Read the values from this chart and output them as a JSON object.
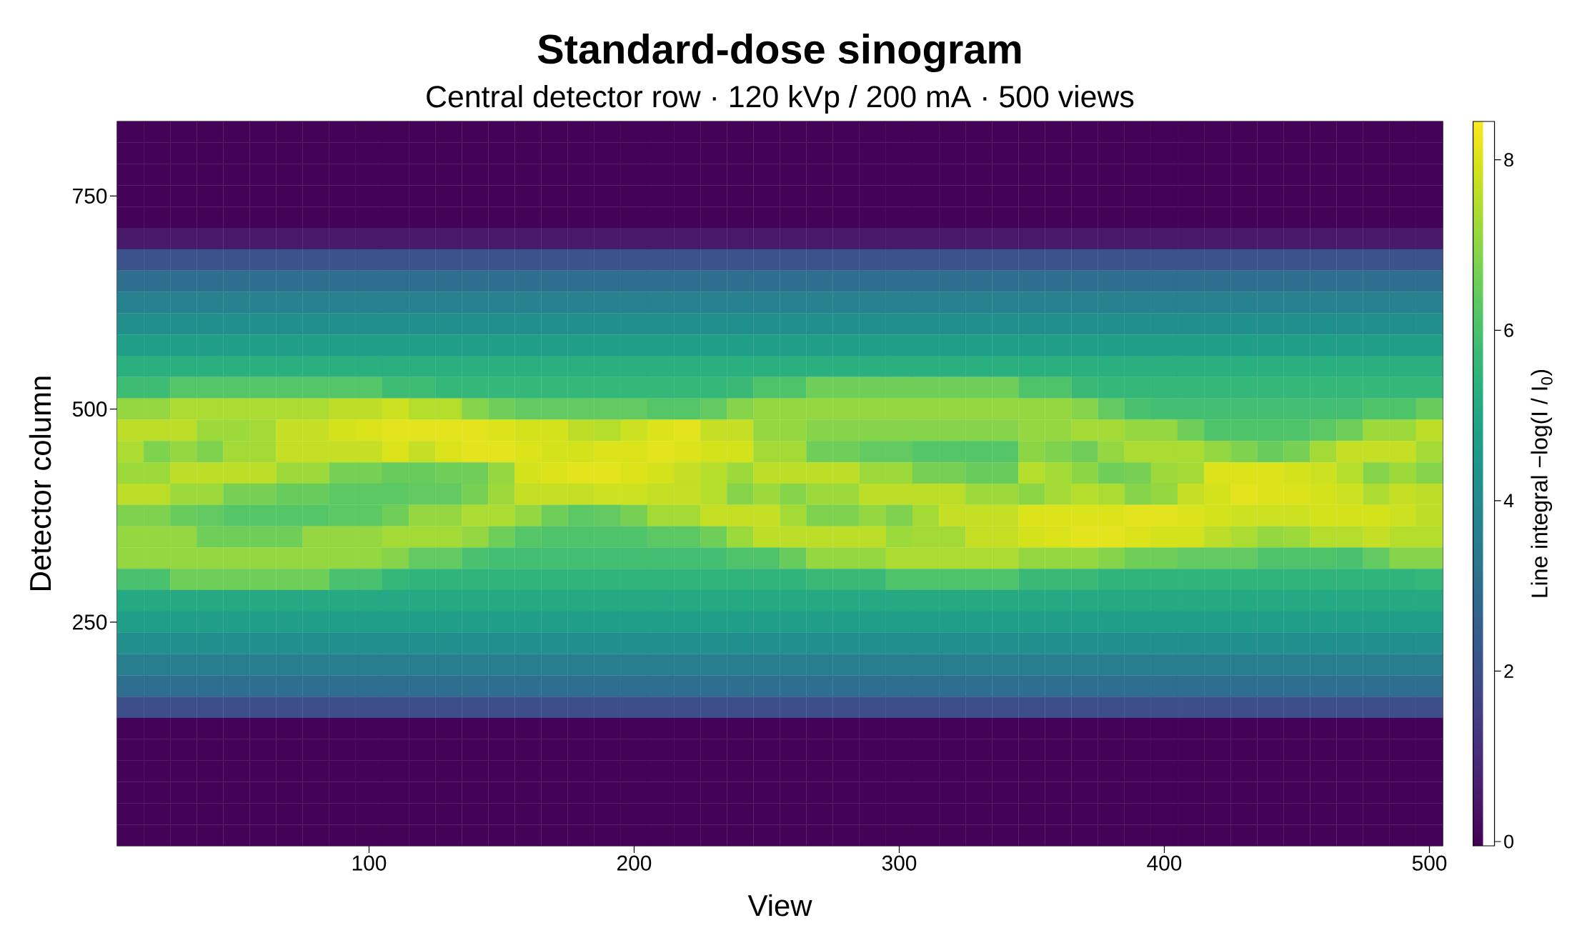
{
  "chart_data": {
    "type": "heatmap",
    "title": "Standard-dose sinogram",
    "subtitle": "Central detector row · 120 kVp / 200 mA · 500 views",
    "xlabel": "View",
    "ylabel": "Detector column",
    "clabel": "Line integral  −log(I / I$_{0}$)",
    "categories": [
      null,
      null,
      null,
      null,
      null,
      null,
      null,
      null,
      null,
      "100",
      null,
      null,
      null,
      null,
      null,
      null,
      null,
      null,
      null,
      "200",
      null,
      null,
      null,
      null,
      null,
      null,
      null,
      null,
      null,
      "300",
      null,
      null,
      null,
      null,
      null,
      null,
      null,
      null,
      null,
      "400",
      null,
      null,
      null,
      null,
      null,
      null,
      null,
      null,
      null,
      "500"
    ],
    "y_categories": [
      null,
      null,
      null,
      "750",
      null,
      null,
      null,
      null,
      null,
      null,
      null,
      null,
      null,
      "500",
      null,
      null,
      null,
      null,
      null,
      null,
      null,
      null,
      null,
      "250",
      null,
      null,
      null,
      null,
      null,
      null,
      null,
      null,
      null,
      null
    ],
    "clim": [
      -0.05,
      8.45
    ],
    "cticks": [
      0,
      2,
      4,
      6,
      8
    ],
    "cells": [
      [
        0,
        0,
        0,
        0,
        0,
        0,
        0,
        0,
        0,
        0,
        0,
        0,
        0,
        0,
        0,
        0,
        0,
        0,
        0,
        0,
        0,
        0,
        0,
        0,
        0,
        0,
        0,
        0,
        0,
        0,
        0,
        0,
        0,
        0,
        0,
        0,
        0,
        0,
        0,
        0,
        0,
        0,
        0,
        0,
        0,
        0,
        0,
        0,
        0,
        0
      ],
      [
        0,
        0,
        0,
        0,
        0,
        0,
        0,
        0,
        0,
        0,
        0,
        0,
        0,
        0,
        0,
        0,
        0,
        0,
        0,
        0,
        0,
        0,
        0,
        0,
        0,
        0,
        0,
        0,
        0,
        0,
        0,
        0,
        0,
        0,
        0,
        0,
        0,
        0,
        0,
        0,
        0,
        0,
        0,
        0,
        0,
        0,
        0,
        0,
        0,
        0
      ],
      [
        0,
        0,
        0,
        0,
        0,
        0,
        0,
        0,
        0,
        0,
        0,
        0,
        0,
        0,
        0,
        0,
        0,
        0,
        0,
        0,
        0,
        0,
        0,
        0,
        0,
        0,
        0,
        0,
        0,
        0,
        0,
        0,
        0,
        0,
        0,
        0,
        0,
        0,
        0,
        0,
        0,
        0,
        0,
        0,
        0,
        0,
        0,
        0,
        0,
        0
      ],
      [
        0,
        0,
        0,
        0,
        0,
        0,
        0,
        0,
        0,
        0,
        0,
        0,
        0,
        0,
        0,
        0,
        0,
        0,
        0,
        0,
        0,
        0,
        0,
        0,
        0,
        0,
        0,
        0,
        0,
        0,
        0,
        0,
        0,
        0,
        0,
        0,
        0,
        0,
        0,
        0,
        0,
        0,
        0,
        0,
        0,
        0,
        0,
        0,
        0,
        0
      ],
      [
        0,
        0,
        0,
        0,
        0,
        0,
        0,
        0,
        0,
        0,
        0,
        0,
        0,
        0,
        0,
        0,
        0,
        0,
        0,
        0,
        0,
        0,
        0,
        0,
        0,
        0,
        0,
        0,
        0,
        0,
        0,
        0,
        0,
        0,
        0,
        0,
        0,
        0,
        0,
        0,
        0,
        0,
        0,
        0,
        0,
        0,
        0,
        0,
        0,
        0
      ],
      [
        0.5,
        0.5,
        0.5,
        0.5,
        0.5,
        0.5,
        0.5,
        0.5,
        0.5,
        0.5,
        0.5,
        0.5,
        0.5,
        0.5,
        0.5,
        0.5,
        0.5,
        0.5,
        0.5,
        0.5,
        0.5,
        0.5,
        0.5,
        0.5,
        0.5,
        0.5,
        0.5,
        0.5,
        0.5,
        0.5,
        0.5,
        0.5,
        0.5,
        0.5,
        0.5,
        0.5,
        0.5,
        0.5,
        0.5,
        0.5,
        0.5,
        0.5,
        0.5,
        0.5,
        0.5,
        0.5,
        0.5,
        0.5,
        0.5,
        0.5
      ],
      [
        2.1,
        2.1,
        2.1,
        2.1,
        2.1,
        2.1,
        2.1,
        2.1,
        2.1,
        2.1,
        2.1,
        2.1,
        2.1,
        2.1,
        2.1,
        2.1,
        2.1,
        2.1,
        2.1,
        2.1,
        2.1,
        2.1,
        2.1,
        2.1,
        2.1,
        2.1,
        2.1,
        2.1,
        2.1,
        2.1,
        2.1,
        2.1,
        2.1,
        2.1,
        2.1,
        2.1,
        2.1,
        2.1,
        2.1,
        2.1,
        2.1,
        2.1,
        2.1,
        2.1,
        2.1,
        2.1,
        2.1,
        2.1,
        2.1,
        2.1
      ],
      [
        3.0,
        3.0,
        3.0,
        3.0,
        3.0,
        3.0,
        3.0,
        3.0,
        3.0,
        3.0,
        3.0,
        3.0,
        3.0,
        3.0,
        3.0,
        3.0,
        3.0,
        3.0,
        3.0,
        3.0,
        3.0,
        3.0,
        3.0,
        3.0,
        3.0,
        3.0,
        3.0,
        3.0,
        3.0,
        3.0,
        3.0,
        3.0,
        3.0,
        3.0,
        3.0,
        3.0,
        3.0,
        3.0,
        3.0,
        3.0,
        3.0,
        3.0,
        3.0,
        3.0,
        3.0,
        3.0,
        3.0,
        3.0,
        3.0,
        3.0
      ],
      [
        3.7,
        3.7,
        3.7,
        3.7,
        3.7,
        3.7,
        3.7,
        3.7,
        3.7,
        3.7,
        3.7,
        3.7,
        3.7,
        3.7,
        3.7,
        3.7,
        3.7,
        3.7,
        3.7,
        3.7,
        3.7,
        3.7,
        3.7,
        3.7,
        3.7,
        3.7,
        3.7,
        3.7,
        3.7,
        3.7,
        3.7,
        3.7,
        3.7,
        3.7,
        3.7,
        3.7,
        3.7,
        3.7,
        3.7,
        3.7,
        3.7,
        3.7,
        3.7,
        3.7,
        3.7,
        3.7,
        3.7,
        3.7,
        3.7,
        3.7
      ],
      [
        4.2,
        4.2,
        4.2,
        4.2,
        4.2,
        4.2,
        4.2,
        4.2,
        4.2,
        4.2,
        4.2,
        4.2,
        4.2,
        4.2,
        4.2,
        4.2,
        4.2,
        4.2,
        4.2,
        4.2,
        4.2,
        4.2,
        4.2,
        4.2,
        4.2,
        4.2,
        4.2,
        4.2,
        4.2,
        4.2,
        4.2,
        4.2,
        4.2,
        4.2,
        4.2,
        4.2,
        4.2,
        4.2,
        4.2,
        4.2,
        4.2,
        4.2,
        4.2,
        4.2,
        4.2,
        4.2,
        4.2,
        4.2,
        4.2,
        4.2
      ],
      [
        4.7,
        4.7,
        4.7,
        4.7,
        4.7,
        4.7,
        4.7,
        4.7,
        4.7,
        4.7,
        4.7,
        4.7,
        4.7,
        4.7,
        4.7,
        4.7,
        4.7,
        4.7,
        4.7,
        4.7,
        4.7,
        4.7,
        4.7,
        4.7,
        4.7,
        4.7,
        4.7,
        4.7,
        4.7,
        4.7,
        4.7,
        4.7,
        4.7,
        4.7,
        4.7,
        4.7,
        4.7,
        4.7,
        4.7,
        4.7,
        4.7,
        4.7,
        4.7,
        4.7,
        4.7,
        4.7,
        4.7,
        4.7,
        4.7,
        4.7
      ],
      [
        5.3,
        5.3,
        5.3,
        5.3,
        5.3,
        5.3,
        5.3,
        5.3,
        5.3,
        5.3,
        5.3,
        5.3,
        5.3,
        5.3,
        5.3,
        5.3,
        5.3,
        5.3,
        5.3,
        5.3,
        5.3,
        5.3,
        5.3,
        5.3,
        5.3,
        5.3,
        5.3,
        5.3,
        5.3,
        5.3,
        5.3,
        5.3,
        5.3,
        5.3,
        5.3,
        5.3,
        5.3,
        5.3,
        5.3,
        5.3,
        5.3,
        5.3,
        5.3,
        5.3,
        5.3,
        5.3,
        5.3,
        5.3,
        5.3,
        5.3
      ],
      [
        5.8,
        5.8,
        6.2,
        6.2,
        6.2,
        6.2,
        6.2,
        6.2,
        6.2,
        6.2,
        5.8,
        5.8,
        5.6,
        5.6,
        5.6,
        5.6,
        5.6,
        5.6,
        5.6,
        5.6,
        5.6,
        5.6,
        5.6,
        5.7,
        6.1,
        6.1,
        6.6,
        6.6,
        6.6,
        6.6,
        6.6,
        6.6,
        6.6,
        6.6,
        6.1,
        6.1,
        5.7,
        5.6,
        5.6,
        5.6,
        5.6,
        5.6,
        5.6,
        5.6,
        5.6,
        5.6,
        5.6,
        5.6,
        5.6,
        5.6
      ],
      [
        7.1,
        7.1,
        7.4,
        7.4,
        7.4,
        7.4,
        7.4,
        7.4,
        7.6,
        7.6,
        7.8,
        7.5,
        7.5,
        6.9,
        6.6,
        6.4,
        6.4,
        6.4,
        6.4,
        6.4,
        6.2,
        6.2,
        6.4,
        6.9,
        7.1,
        7.1,
        7.1,
        7.1,
        7.1,
        7.1,
        7.1,
        7.1,
        7.1,
        7.1,
        7.1,
        7.1,
        6.9,
        6.4,
        6.0,
        5.9,
        5.9,
        5.9,
        5.9,
        5.9,
        5.9,
        5.9,
        5.9,
        6.1,
        6.1,
        6.5
      ],
      [
        7.6,
        7.6,
        7.6,
        7.2,
        7.2,
        7.3,
        7.7,
        7.7,
        7.9,
        8.0,
        8.1,
        8.1,
        8.1,
        8.1,
        8.0,
        7.9,
        7.9,
        7.6,
        7.5,
        7.8,
        8.0,
        8.1,
        7.7,
        7.7,
        7.1,
        7.1,
        6.9,
        6.9,
        6.9,
        6.9,
        6.9,
        6.9,
        6.9,
        6.9,
        7.1,
        7.1,
        7.3,
        7.3,
        7.1,
        7.1,
        6.6,
        6.1,
        6.1,
        6.1,
        6.1,
        6.3,
        6.6,
        7.2,
        7.2,
        7.6
      ],
      [
        7.4,
        6.8,
        7.1,
        6.8,
        7.3,
        7.3,
        7.7,
        7.7,
        7.7,
        7.7,
        8.0,
        7.7,
        8.0,
        8.1,
        8.1,
        8.0,
        7.9,
        7.9,
        8.0,
        8.0,
        8.1,
        8.0,
        7.9,
        7.9,
        7.3,
        7.3,
        6.6,
        6.6,
        6.4,
        6.4,
        6.2,
        6.2,
        6.2,
        6.2,
        7.0,
        6.8,
        6.6,
        7.1,
        7.4,
        7.4,
        7.4,
        7.1,
        6.8,
        6.5,
        6.7,
        7.3,
        7.7,
        7.7,
        7.7,
        7.3
      ],
      [
        7.2,
        7.2,
        7.6,
        7.6,
        7.6,
        7.6,
        7.2,
        7.2,
        6.7,
        6.7,
        6.5,
        6.5,
        6.6,
        6.6,
        7.1,
        7.9,
        8.0,
        8.1,
        8.1,
        8.0,
        7.9,
        7.7,
        7.5,
        7.2,
        7.6,
        7.6,
        7.6,
        7.6,
        7.2,
        7.2,
        6.7,
        6.7,
        6.5,
        6.5,
        7.5,
        7.3,
        7.0,
        6.6,
        6.7,
        7.2,
        7.3,
        8.0,
        8.0,
        8.0,
        7.9,
        7.8,
        7.5,
        6.9,
        7.2,
        6.9
      ],
      [
        7.6,
        7.6,
        7.2,
        7.2,
        6.7,
        6.7,
        6.5,
        6.5,
        6.3,
        6.3,
        6.3,
        6.4,
        6.4,
        6.7,
        7.2,
        7.7,
        7.7,
        7.7,
        7.8,
        7.8,
        7.7,
        7.7,
        7.5,
        6.9,
        7.2,
        6.9,
        7.2,
        7.2,
        7.6,
        7.6,
        7.6,
        7.6,
        7.2,
        7.2,
        7.0,
        7.3,
        7.5,
        7.4,
        6.9,
        7.1,
        7.7,
        7.9,
        8.1,
        8.0,
        8.0,
        7.9,
        7.8,
        7.4,
        7.7,
        7.6
      ],
      [
        6.8,
        6.8,
        6.5,
        6.4,
        6.2,
        6.2,
        6.2,
        6.2,
        6.3,
        6.3,
        6.6,
        7.1,
        7.1,
        7.4,
        7.4,
        7.1,
        6.6,
        6.3,
        6.4,
        6.7,
        7.3,
        7.3,
        7.7,
        7.7,
        7.7,
        7.3,
        6.8,
        6.8,
        7.1,
        6.8,
        7.3,
        7.7,
        7.7,
        7.7,
        8.0,
        8.0,
        8.0,
        8.0,
        8.1,
        8.1,
        8.0,
        7.9,
        7.8,
        7.8,
        7.8,
        7.9,
        7.9,
        7.9,
        7.8,
        7.6
      ],
      [
        7.1,
        7.1,
        7.1,
        6.6,
        6.6,
        6.6,
        6.6,
        7.1,
        7.1,
        7.1,
        7.3,
        7.3,
        7.3,
        7.1,
        6.6,
        6.2,
        6.1,
        6.1,
        6.1,
        6.1,
        6.3,
        6.3,
        6.6,
        7.2,
        7.6,
        7.6,
        7.6,
        7.6,
        7.6,
        7.2,
        7.3,
        7.3,
        7.7,
        7.7,
        7.9,
        8.0,
        8.1,
        8.1,
        8.0,
        7.9,
        7.9,
        7.6,
        7.4,
        7.1,
        7.2,
        7.5,
        7.5,
        7.7,
        7.5,
        7.5
      ],
      [
        7.1,
        7.1,
        7.1,
        7.1,
        7.1,
        7.1,
        7.1,
        7.1,
        7.1,
        7.1,
        6.9,
        6.4,
        6.4,
        6.0,
        5.9,
        5.9,
        5.9,
        5.9,
        5.9,
        5.9,
        5.9,
        5.9,
        5.9,
        6.1,
        6.1,
        6.5,
        7.1,
        7.1,
        7.1,
        7.4,
        7.4,
        7.4,
        7.4,
        7.4,
        7.1,
        7.1,
        7.1,
        6.9,
        6.6,
        6.6,
        6.4,
        6.4,
        6.4,
        6.1,
        6.1,
        6.1,
        6.0,
        6.4,
        6.9,
        6.9
      ],
      [
        6.0,
        6.0,
        6.6,
        6.6,
        6.6,
        6.6,
        6.6,
        6.6,
        6.0,
        6.0,
        5.6,
        5.5,
        5.5,
        5.5,
        5.5,
        5.5,
        5.5,
        5.5,
        5.5,
        5.5,
        5.5,
        5.5,
        5.5,
        5.5,
        5.5,
        5.5,
        5.7,
        5.7,
        5.7,
        6.1,
        6.1,
        6.1,
        6.1,
        6.1,
        5.7,
        5.7,
        5.7,
        5.5,
        5.5,
        5.5,
        5.5,
        5.5,
        5.5,
        5.5,
        5.5,
        5.5,
        5.5,
        5.5,
        5.5,
        5.6
      ],
      [
        5.1,
        5.1,
        5.1,
        5.1,
        5.1,
        5.1,
        5.1,
        5.1,
        5.1,
        5.1,
        5.1,
        5.1,
        5.1,
        5.1,
        5.1,
        5.1,
        5.1,
        5.1,
        5.1,
        5.1,
        5.1,
        5.1,
        5.1,
        5.1,
        5.1,
        5.1,
        5.1,
        5.1,
        5.1,
        5.1,
        5.1,
        5.1,
        5.1,
        5.1,
        5.1,
        5.1,
        5.1,
        5.1,
        5.1,
        5.1,
        5.1,
        5.1,
        5.1,
        5.1,
        5.1,
        5.1,
        5.1,
        5.1,
        5.1,
        5.1
      ],
      [
        4.7,
        4.7,
        4.7,
        4.7,
        4.7,
        4.7,
        4.7,
        4.7,
        4.7,
        4.7,
        4.7,
        4.7,
        4.7,
        4.7,
        4.7,
        4.7,
        4.7,
        4.7,
        4.7,
        4.7,
        4.7,
        4.7,
        4.7,
        4.7,
        4.7,
        4.7,
        4.7,
        4.7,
        4.7,
        4.7,
        4.7,
        4.7,
        4.7,
        4.7,
        4.7,
        4.7,
        4.7,
        4.7,
        4.7,
        4.7,
        4.7,
        4.7,
        4.7,
        4.7,
        4.7,
        4.7,
        4.7,
        4.7,
        4.7,
        4.7
      ],
      [
        4.2,
        4.2,
        4.2,
        4.2,
        4.2,
        4.2,
        4.2,
        4.2,
        4.2,
        4.2,
        4.2,
        4.2,
        4.2,
        4.2,
        4.2,
        4.2,
        4.2,
        4.2,
        4.2,
        4.2,
        4.2,
        4.2,
        4.2,
        4.2,
        4.2,
        4.2,
        4.2,
        4.2,
        4.2,
        4.2,
        4.2,
        4.2,
        4.2,
        4.2,
        4.2,
        4.2,
        4.2,
        4.2,
        4.2,
        4.2,
        4.2,
        4.2,
        4.2,
        4.2,
        4.2,
        4.2,
        4.2,
        4.2,
        4.2,
        4.2
      ],
      [
        3.6,
        3.6,
        3.6,
        3.6,
        3.6,
        3.6,
        3.6,
        3.6,
        3.6,
        3.6,
        3.6,
        3.6,
        3.6,
        3.6,
        3.6,
        3.6,
        3.6,
        3.6,
        3.6,
        3.6,
        3.6,
        3.6,
        3.6,
        3.6,
        3.6,
        3.6,
        3.6,
        3.6,
        3.6,
        3.6,
        3.6,
        3.6,
        3.6,
        3.6,
        3.6,
        3.6,
        3.6,
        3.6,
        3.6,
        3.6,
        3.6,
        3.6,
        3.6,
        3.6,
        3.6,
        3.6,
        3.6,
        3.6,
        3.6,
        3.6
      ],
      [
        3.0,
        3.0,
        3.0,
        3.0,
        3.0,
        3.0,
        3.0,
        3.0,
        3.0,
        3.0,
        3.0,
        3.0,
        3.0,
        3.0,
        3.0,
        3.0,
        3.0,
        3.0,
        3.0,
        3.0,
        3.0,
        3.0,
        3.0,
        3.0,
        3.0,
        3.0,
        3.0,
        3.0,
        3.0,
        3.0,
        3.0,
        3.0,
        3.0,
        3.0,
        3.0,
        3.0,
        3.0,
        3.0,
        3.0,
        3.0,
        3.0,
        3.0,
        3.0,
        3.0,
        3.0,
        3.0,
        3.0,
        3.0,
        3.0,
        3.0
      ],
      [
        2.0,
        2.0,
        2.0,
        2.0,
        2.0,
        2.0,
        2.0,
        2.0,
        2.0,
        2.0,
        2.0,
        2.0,
        2.0,
        2.0,
        2.0,
        2.0,
        2.0,
        2.0,
        2.0,
        2.0,
        2.0,
        2.0,
        2.0,
        2.0,
        2.0,
        2.0,
        2.0,
        2.0,
        2.0,
        2.0,
        2.0,
        2.0,
        2.0,
        2.0,
        2.0,
        2.0,
        2.0,
        2.0,
        2.0,
        2.0,
        2.0,
        2.0,
        2.0,
        2.0,
        2.0,
        2.0,
        2.0,
        2.0,
        2.0,
        2.0
      ],
      [
        0,
        0,
        0,
        0,
        0,
        0,
        0,
        0,
        0,
        0,
        0,
        0,
        0,
        0,
        0,
        0,
        0,
        0,
        0,
        0,
        0,
        0,
        0,
        0,
        0,
        0,
        0,
        0,
        0,
        0,
        0,
        0,
        0,
        0,
        0,
        0,
        0,
        0,
        0,
        0,
        0,
        0,
        0,
        0,
        0,
        0,
        0,
        0,
        0,
        0
      ],
      [
        0,
        0,
        0,
        0,
        0,
        0,
        0,
        0,
        0,
        0,
        0,
        0,
        0,
        0,
        0,
        0,
        0,
        0,
        0,
        0,
        0,
        0,
        0,
        0,
        0,
        0,
        0,
        0,
        0,
        0,
        0,
        0,
        0,
        0,
        0,
        0,
        0,
        0,
        0,
        0,
        0,
        0,
        0,
        0,
        0,
        0,
        0,
        0,
        0,
        0
      ],
      [
        0,
        0,
        0,
        0,
        0,
        0,
        0,
        0,
        0,
        0,
        0,
        0,
        0,
        0,
        0,
        0,
        0,
        0,
        0,
        0,
        0,
        0,
        0,
        0,
        0,
        0,
        0,
        0,
        0,
        0,
        0,
        0,
        0,
        0,
        0,
        0,
        0,
        0,
        0,
        0,
        0,
        0,
        0,
        0,
        0,
        0,
        0,
        0,
        0,
        0
      ],
      [
        0,
        0,
        0,
        0,
        0,
        0,
        0,
        0,
        0,
        0,
        0,
        0,
        0,
        0,
        0,
        0,
        0,
        0,
        0,
        0,
        0,
        0,
        0,
        0,
        0,
        0,
        0,
        0,
        0,
        0,
        0,
        0,
        0,
        0,
        0,
        0,
        0,
        0,
        0,
        0,
        0,
        0,
        0,
        0,
        0,
        0,
        0,
        0,
        0,
        0
      ],
      [
        0,
        0,
        0,
        0,
        0,
        0,
        0,
        0,
        0,
        0,
        0,
        0,
        0,
        0,
        0,
        0,
        0,
        0,
        0,
        0,
        0,
        0,
        0,
        0,
        0,
        0,
        0,
        0,
        0,
        0,
        0,
        0,
        0,
        0,
        0,
        0,
        0,
        0,
        0,
        0,
        0,
        0,
        0,
        0,
        0,
        0,
        0,
        0,
        0,
        0
      ],
      [
        0,
        0,
        0,
        0,
        0,
        0,
        0,
        0,
        0,
        0,
        0,
        0,
        0,
        0,
        0,
        0,
        0,
        0,
        0,
        0,
        0,
        0,
        0,
        0,
        0,
        0,
        0,
        0,
        0,
        0,
        0,
        0,
        0,
        0,
        0,
        0,
        0,
        0,
        0,
        0,
        0,
        0,
        0,
        0,
        0,
        0,
        0,
        0,
        0,
        0
      ]
    ]
  }
}
